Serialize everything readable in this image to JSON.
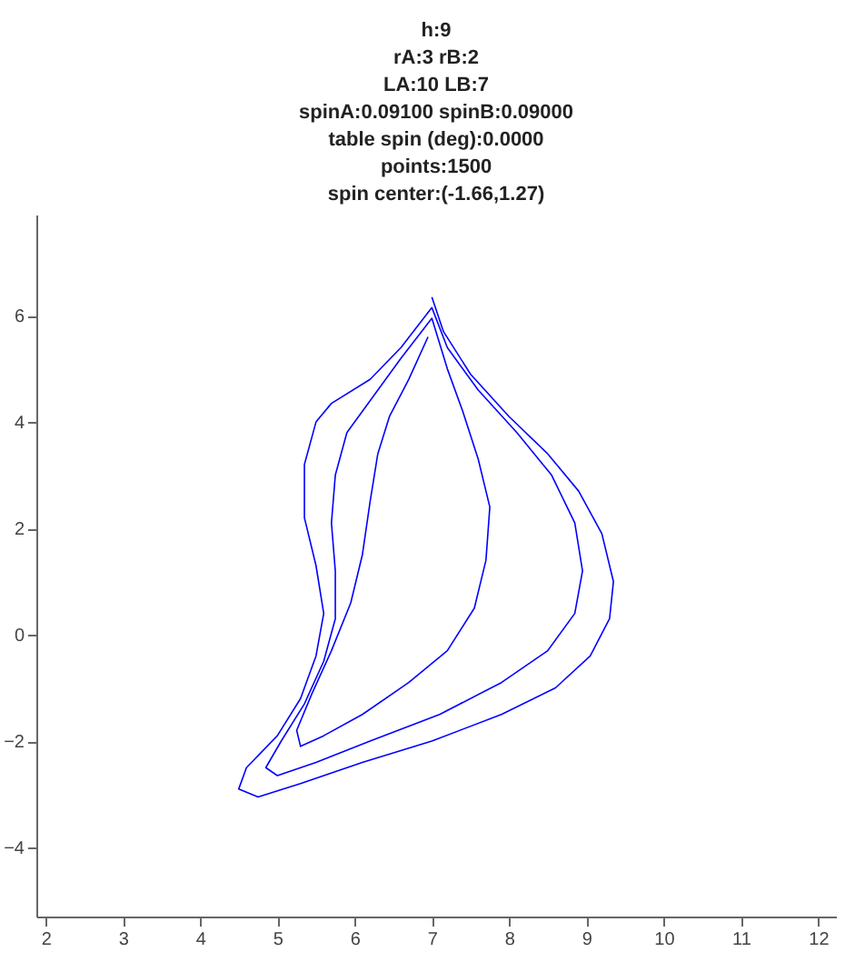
{
  "chart_data": {
    "type": "line",
    "title": "h:9\nrA:3 rB:2\nLA:10 LB:7\nspinA:0.09100 spinB:0.09000\ntable spin (deg):0.0000\npoints:1500\nspin center:(-1.66,1.27)",
    "xlim": [
      1.88,
      12.23
    ],
    "xticks": [
      2,
      3,
      4,
      5,
      6,
      7,
      8,
      9,
      10,
      11,
      12
    ],
    "ylim": [
      -5.3,
      7.9
    ],
    "yticks": [
      -4,
      -2,
      0,
      2,
      4,
      6
    ],
    "grid": false,
    "marker": "none",
    "line_style": "solid",
    "series": [
      {
        "color": "#0000ff",
        "x": [
          7.0,
          7.15,
          7.5,
          8.0,
          8.5,
          8.9,
          9.2,
          9.35,
          9.3,
          9.05,
          8.6,
          7.9,
          7.0,
          6.1,
          5.3,
          4.75,
          4.5,
          4.6,
          5.0,
          5.3,
          5.5,
          5.6,
          5.5,
          5.35,
          5.35,
          5.5,
          5.7,
          6.2,
          6.6,
          7.0,
          7.2,
          7.6,
          8.1,
          8.55,
          8.85,
          8.95,
          8.85,
          8.5,
          7.9,
          7.1,
          6.2,
          5.5,
          5.0,
          4.85,
          5.05,
          5.35,
          5.6,
          5.75,
          5.75,
          5.7,
          5.75,
          5.9,
          6.2,
          6.6,
          7.0,
          7.2,
          7.4,
          7.6,
          7.75,
          7.7,
          7.55,
          7.2,
          6.7,
          6.1,
          5.6,
          5.3,
          5.25,
          5.45,
          5.7,
          5.95,
          6.1,
          6.2,
          6.3,
          6.45,
          6.7,
          6.95
        ],
        "values": [
          6.35,
          5.7,
          4.9,
          4.1,
          3.4,
          2.7,
          1.9,
          1.0,
          0.3,
          -0.4,
          -1.0,
          -1.5,
          -2.0,
          -2.4,
          -2.8,
          -3.05,
          -2.9,
          -2.5,
          -1.9,
          -1.2,
          -0.4,
          0.4,
          1.3,
          2.2,
          3.2,
          4.0,
          4.35,
          4.8,
          5.4,
          6.15,
          5.4,
          4.6,
          3.8,
          3.0,
          2.1,
          1.2,
          0.4,
          -0.3,
          -0.9,
          -1.5,
          -2.0,
          -2.4,
          -2.65,
          -2.5,
          -2.0,
          -1.3,
          -0.5,
          0.3,
          1.2,
          2.1,
          3.0,
          3.8,
          4.4,
          5.2,
          5.95,
          5.0,
          4.2,
          3.3,
          2.4,
          1.4,
          0.5,
          -0.3,
          -0.9,
          -1.5,
          -1.9,
          -2.1,
          -1.8,
          -1.1,
          -0.3,
          0.6,
          1.5,
          2.5,
          3.4,
          4.1,
          4.8,
          5.6
        ]
      }
    ]
  }
}
